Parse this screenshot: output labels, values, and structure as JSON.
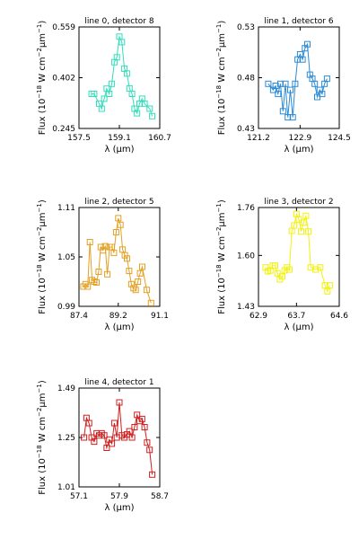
{
  "chart_data": [
    {
      "type": "line",
      "title": "line 0, detector 8",
      "xlabel": "λ (μm)",
      "ylabel": "Flux (10⁻¹⁸ W cm⁻² μm⁻¹)",
      "xlim": [
        157.5,
        160.7
      ],
      "ylim": [
        0.245,
        0.559
      ],
      "xticks": [
        "157.5",
        "159.1",
        "160.7"
      ],
      "yticks": [
        "0.559",
        "0.402",
        "0.245"
      ],
      "color": "#33ddbb",
      "marker": "square",
      "x": [
        158.0,
        158.1,
        158.3,
        158.4,
        158.5,
        158.6,
        158.7,
        158.8,
        158.9,
        159.0,
        159.1,
        159.2,
        159.3,
        159.4,
        159.5,
        159.6,
        159.7,
        159.8,
        159.9,
        160.0,
        160.1,
        160.3,
        160.4
      ],
      "y": [
        0.352,
        0.352,
        0.322,
        0.306,
        0.337,
        0.368,
        0.352,
        0.383,
        0.45,
        0.465,
        0.529,
        0.512,
        0.43,
        0.415,
        0.369,
        0.352,
        0.306,
        0.292,
        0.322,
        0.337,
        0.322,
        0.306,
        0.283
      ]
    },
    {
      "type": "line",
      "title": "line 1, detector 6",
      "xlabel": "λ (μm)",
      "ylabel": "Flux (10⁻¹⁸ W cm⁻² μm⁻¹)",
      "xlim": [
        121.2,
        124.5
      ],
      "ylim": [
        0.43,
        0.53
      ],
      "xticks": [
        "121.2",
        "122.9",
        "124.5"
      ],
      "yticks": [
        "0.53",
        "0.48",
        "0.43"
      ],
      "color": "#2b8ad6",
      "marker": "square",
      "x": [
        121.6,
        121.8,
        121.9,
        122.0,
        122.1,
        122.2,
        122.3,
        122.4,
        122.5,
        122.6,
        122.7,
        122.8,
        122.9,
        123.0,
        123.1,
        123.2,
        123.3,
        123.4,
        123.5,
        123.6,
        123.7,
        123.8,
        123.9,
        124.0
      ],
      "y": [
        0.474,
        0.468,
        0.472,
        0.464,
        0.474,
        0.447,
        0.474,
        0.441,
        0.468,
        0.441,
        0.474,
        0.498,
        0.503,
        0.498,
        0.509,
        0.513,
        0.483,
        0.479,
        0.474,
        0.461,
        0.468,
        0.464,
        0.474,
        0.479
      ]
    },
    {
      "type": "line",
      "title": "line 2, detector 5",
      "xlabel": "λ (μm)",
      "ylabel": "Flux (10⁻¹⁸ W cm⁻² μm⁻¹)",
      "xlim": [
        87.4,
        91.1
      ],
      "ylim": [
        0.99,
        1.11
      ],
      "xticks": [
        "87.4",
        "89.2",
        "91.1"
      ],
      "yticks": [
        "1.11",
        "1.05",
        "0.99"
      ],
      "color": "#e3a024",
      "marker": "square",
      "x": [
        87.6,
        87.7,
        87.8,
        87.9,
        88.0,
        88.1,
        88.2,
        88.3,
        88.4,
        88.5,
        88.6,
        88.7,
        88.8,
        88.9,
        89.0,
        89.1,
        89.2,
        89.3,
        89.4,
        89.5,
        89.6,
        89.7,
        89.8,
        89.9,
        90.0,
        90.1,
        90.2,
        90.3,
        90.5,
        90.7
      ],
      "y": [
        1.014,
        1.017,
        1.014,
        1.068,
        1.022,
        1.02,
        1.019,
        1.032,
        1.062,
        1.058,
        1.063,
        1.029,
        1.062,
        1.062,
        1.055,
        1.08,
        1.097,
        1.089,
        1.059,
        1.052,
        1.048,
        1.033,
        1.017,
        1.012,
        1.01,
        1.02,
        1.03,
        1.038,
        1.01,
        0.994
      ]
    },
    {
      "type": "line",
      "title": "line 3, detector 2",
      "xlabel": "λ (μm)",
      "ylabel": "Flux (10⁻¹⁸ W cm⁻² μm⁻¹)",
      "xlim": [
        62.9,
        64.6
      ],
      "ylim": [
        1.43,
        1.76
      ],
      "xticks": [
        "62.9",
        "63.7",
        "64.6"
      ],
      "yticks": [
        "1.76",
        "1.60",
        "1.43"
      ],
      "color": "#f2f20f",
      "marker": "square",
      "x": [
        63.05,
        63.1,
        63.15,
        63.2,
        63.25,
        63.3,
        63.35,
        63.4,
        63.45,
        63.5,
        63.55,
        63.6,
        63.65,
        63.7,
        63.75,
        63.8,
        63.85,
        63.9,
        63.95,
        64.0,
        64.1,
        64.2,
        64.3,
        64.35,
        64.4
      ],
      "y": [
        1.56,
        1.547,
        1.55,
        1.566,
        1.566,
        1.54,
        1.52,
        1.53,
        1.55,
        1.56,
        1.553,
        1.682,
        1.7,
        1.738,
        1.72,
        1.68,
        1.71,
        1.732,
        1.68,
        1.56,
        1.553,
        1.56,
        1.5,
        1.48,
        1.5
      ]
    },
    {
      "type": "line",
      "title": "line 4, detector 1",
      "xlabel": "λ (μm)",
      "ylabel": "Flux (10⁻¹⁸ W cm⁻² μm⁻¹)",
      "xlim": [
        57.1,
        58.7
      ],
      "ylim": [
        1.01,
        1.49
      ],
      "xticks": [
        "57.1",
        "57.9",
        "58.7"
      ],
      "yticks": [
        "1.49",
        "1.25",
        "1.01"
      ],
      "color": "#d11f1f",
      "marker": "square",
      "x": [
        57.2,
        57.25,
        57.3,
        57.35,
        57.4,
        57.45,
        57.5,
        57.55,
        57.6,
        57.65,
        57.7,
        57.75,
        57.8,
        57.85,
        57.9,
        57.95,
        58.0,
        58.05,
        58.1,
        58.15,
        58.2,
        58.25,
        58.3,
        58.35,
        58.4,
        58.45,
        58.5,
        58.55
      ],
      "y": [
        1.25,
        1.345,
        1.32,
        1.25,
        1.23,
        1.27,
        1.26,
        1.27,
        1.26,
        1.2,
        1.24,
        1.22,
        1.32,
        1.25,
        1.42,
        1.26,
        1.25,
        1.265,
        1.28,
        1.25,
        1.3,
        1.36,
        1.33,
        1.34,
        1.3,
        1.225,
        1.19,
        1.07
      ]
    }
  ]
}
